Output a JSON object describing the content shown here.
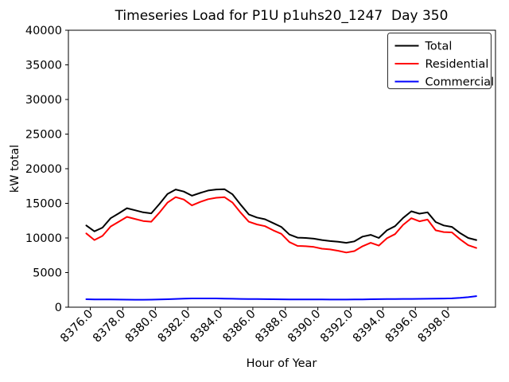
{
  "chart_data": {
    "type": "line",
    "title": "Timeseries Load for P1U p1uhs20_1247  Day 350",
    "xlabel": "Hour of Year",
    "ylabel": "kW total",
    "xlim": [
      8374.65,
      8400.93
    ],
    "ylim": [
      0,
      40000
    ],
    "grid": false,
    "legend_position": "upper right",
    "x_ticks": [
      8376,
      8378,
      8380,
      8382,
      8384,
      8386,
      8388,
      8390,
      8392,
      8394,
      8396,
      8398
    ],
    "x_tick_labels": [
      "8376.0",
      "8378.0",
      "8380.0",
      "8382.0",
      "8384.0",
      "8386.0",
      "8388.0",
      "8390.0",
      "8392.0",
      "8394.0",
      "8396.0",
      "8398.0"
    ],
    "y_ticks": [
      0,
      5000,
      10000,
      15000,
      20000,
      25000,
      30000,
      35000,
      40000
    ],
    "y_tick_labels": [
      "0",
      "5000",
      "10000",
      "15000",
      "20000",
      "25000",
      "30000",
      "35000",
      "40000"
    ],
    "x": [
      8375.75,
      8376.25,
      8376.75,
      8377.25,
      8377.75,
      8378.25,
      8378.75,
      8379.25,
      8379.75,
      8380.25,
      8380.75,
      8381.25,
      8381.75,
      8382.25,
      8382.75,
      8383.25,
      8383.75,
      8384.25,
      8384.75,
      8385.25,
      8385.75,
      8386.25,
      8386.75,
      8387.25,
      8387.75,
      8388.25,
      8388.75,
      8389.25,
      8389.75,
      8390.25,
      8390.75,
      8391.25,
      8391.75,
      8392.25,
      8392.75,
      8393.25,
      8393.75,
      8394.25,
      8394.75,
      8395.25,
      8395.75,
      8396.25,
      8396.75,
      8397.25,
      8397.75,
      8398.25,
      8398.75,
      8399.25,
      8399.75
    ],
    "series": [
      {
        "name": "Total",
        "color": "#000000",
        "values": [
          11800,
          10950,
          11500,
          12850,
          13550,
          14300,
          14000,
          13700,
          13550,
          14900,
          16350,
          17000,
          16700,
          16100,
          16500,
          16850,
          17000,
          17050,
          16300,
          14800,
          13400,
          12950,
          12700,
          12150,
          11600,
          10500,
          10050,
          10000,
          9900,
          9700,
          9550,
          9450,
          9300,
          9500,
          10200,
          10450,
          10000,
          11100,
          11700,
          12900,
          13850,
          13500,
          13700,
          12300,
          11800,
          11600,
          10700,
          10000,
          9700
        ]
      },
      {
        "name": "Residential",
        "color": "#ff0000",
        "values": [
          10650,
          9700,
          10300,
          11650,
          12350,
          13050,
          12750,
          12450,
          12350,
          13650,
          15100,
          15900,
          15550,
          14700,
          15200,
          15600,
          15800,
          15900,
          15100,
          13650,
          12350,
          11950,
          11700,
          11100,
          10600,
          9400,
          8850,
          8800,
          8700,
          8450,
          8350,
          8150,
          7900,
          8100,
          8800,
          9300,
          8900,
          9950,
          10550,
          11900,
          12850,
          12400,
          12650,
          11100,
          10850,
          10800,
          9800,
          8950,
          8550
        ]
      },
      {
        "name": "Commercial",
        "color": "#0000ff",
        "values": [
          1150,
          1130,
          1120,
          1110,
          1100,
          1090,
          1080,
          1080,
          1090,
          1110,
          1150,
          1200,
          1230,
          1260,
          1270,
          1270,
          1260,
          1240,
          1220,
          1200,
          1180,
          1170,
          1160,
          1150,
          1140,
          1130,
          1120,
          1120,
          1110,
          1110,
          1100,
          1100,
          1100,
          1110,
          1130,
          1150,
          1160,
          1170,
          1180,
          1190,
          1200,
          1210,
          1220,
          1230,
          1250,
          1280,
          1350,
          1450,
          1600
        ]
      }
    ],
    "colors": {
      "axes": "#000000",
      "background": "#ffffff",
      "legend_border": "#2b2b2b"
    }
  }
}
